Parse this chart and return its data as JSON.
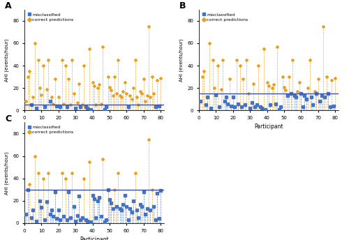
{
  "cutoffs": [
    5,
    15,
    30
  ],
  "panel_labels": [
    "A",
    "B",
    "C"
  ],
  "n_participants": 80,
  "misclassified_color": "#4472C4",
  "correct_color": "#E8A020",
  "cutoff_line_color": "#3A4FA0",
  "ylim": [
    0,
    90
  ],
  "yticks": [
    0,
    20,
    40,
    60,
    80
  ],
  "ylabel": "AHI (events/hour)",
  "xlabel": "Participant",
  "legend_misclassified": "misclassified",
  "legend_correct": "correct predictions",
  "ahi_values": [
    8,
    30,
    35,
    5,
    12,
    60,
    2,
    45,
    20,
    14,
    40,
    3,
    19,
    45,
    8,
    12,
    6,
    28,
    4,
    12,
    3,
    45,
    6,
    40,
    3,
    28,
    5,
    45,
    15,
    2,
    7,
    24,
    3,
    5,
    40,
    3,
    2,
    55,
    1,
    25,
    22,
    5,
    20,
    23,
    6,
    57,
    1,
    3,
    30,
    21,
    18,
    13,
    30,
    15,
    45,
    13,
    12,
    17,
    25,
    15,
    3,
    13,
    10,
    20,
    45,
    12,
    5,
    17,
    15,
    28,
    8,
    13,
    75,
    12,
    30,
    15,
    3,
    27,
    4,
    29
  ],
  "mis_A": [
    0,
    0,
    0,
    1,
    0,
    0,
    1,
    0,
    0,
    0,
    0,
    1,
    0,
    0,
    1,
    0,
    0,
    0,
    1,
    0,
    1,
    0,
    0,
    0,
    1,
    0,
    0,
    0,
    0,
    1,
    0,
    0,
    1,
    0,
    0,
    1,
    1,
    0,
    1,
    0,
    0,
    0,
    0,
    0,
    0,
    0,
    1,
    1,
    0,
    0,
    0,
    0,
    0,
    0,
    0,
    0,
    0,
    0,
    0,
    0,
    1,
    0,
    0,
    0,
    0,
    0,
    0,
    0,
    0,
    0,
    0,
    0,
    0,
    0,
    0,
    0,
    1,
    0,
    1,
    0
  ],
  "mis_B": [
    1,
    0,
    0,
    1,
    1,
    0,
    1,
    0,
    0,
    1,
    0,
    1,
    0,
    0,
    1,
    1,
    1,
    0,
    1,
    1,
    1,
    0,
    1,
    0,
    1,
    0,
    1,
    0,
    0,
    1,
    1,
    0,
    1,
    1,
    0,
    1,
    1,
    0,
    1,
    0,
    0,
    1,
    0,
    0,
    1,
    0,
    1,
    1,
    0,
    0,
    0,
    1,
    0,
    1,
    0,
    1,
    1,
    0,
    0,
    1,
    1,
    1,
    1,
    0,
    0,
    1,
    1,
    0,
    1,
    0,
    1,
    1,
    0,
    1,
    0,
    1,
    1,
    0,
    1,
    0
  ],
  "mis_C": [
    1,
    1,
    0,
    1,
    1,
    0,
    1,
    0,
    1,
    1,
    0,
    1,
    1,
    0,
    1,
    1,
    1,
    1,
    1,
    1,
    1,
    0,
    1,
    0,
    1,
    1,
    1,
    0,
    1,
    1,
    1,
    1,
    1,
    1,
    0,
    1,
    1,
    0,
    1,
    1,
    1,
    1,
    1,
    1,
    1,
    0,
    1,
    1,
    1,
    1,
    1,
    1,
    0,
    1,
    0,
    1,
    1,
    1,
    1,
    1,
    1,
    1,
    1,
    1,
    0,
    1,
    1,
    1,
    1,
    1,
    1,
    1,
    0,
    1,
    0,
    1,
    1,
    1,
    1,
    1
  ]
}
